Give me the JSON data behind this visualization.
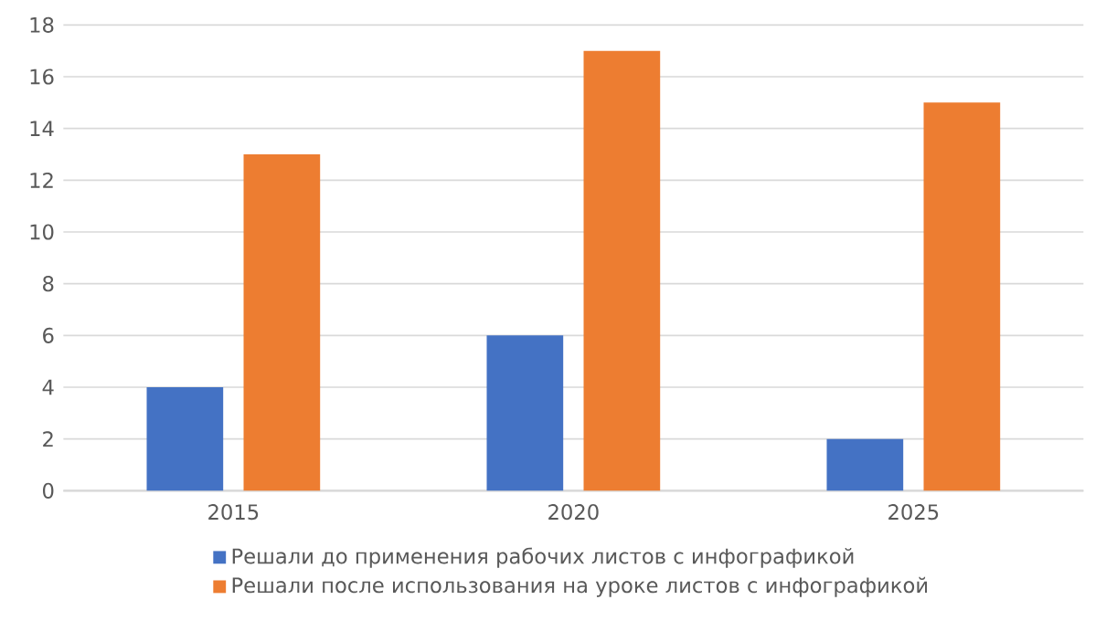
{
  "chart_data": {
    "type": "bar",
    "categories": [
      "2015",
      "2020",
      "2025"
    ],
    "series": [
      {
        "name": "Решали до применения рабочих листов с инфографикой",
        "color": "#4472c4",
        "values": [
          4,
          6,
          2
        ]
      },
      {
        "name": "Решали после использования на уроке листов с инфографикой",
        "color": "#ed7d31",
        "values": [
          13,
          17,
          15
        ]
      }
    ],
    "ylim": [
      0,
      18
    ],
    "yticks": [
      0,
      2,
      4,
      6,
      8,
      10,
      12,
      14,
      16,
      18
    ],
    "grid": "y",
    "legend": "bottom"
  }
}
